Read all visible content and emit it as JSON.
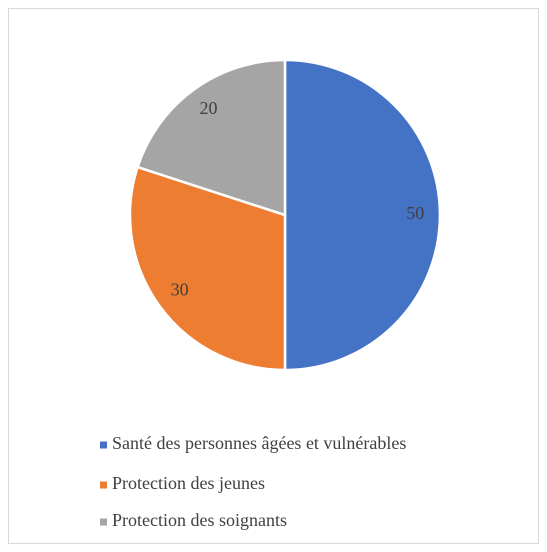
{
  "chart_data": {
    "type": "pie",
    "categories": [
      "Santé des personnes âgées et vulnérables",
      "Protection des jeunes",
      "Protection des soignants"
    ],
    "values": [
      50,
      30,
      20
    ],
    "colors": [
      "#4472c4",
      "#ed7d31",
      "#a5a5a5"
    ],
    "legend": "bottom"
  }
}
